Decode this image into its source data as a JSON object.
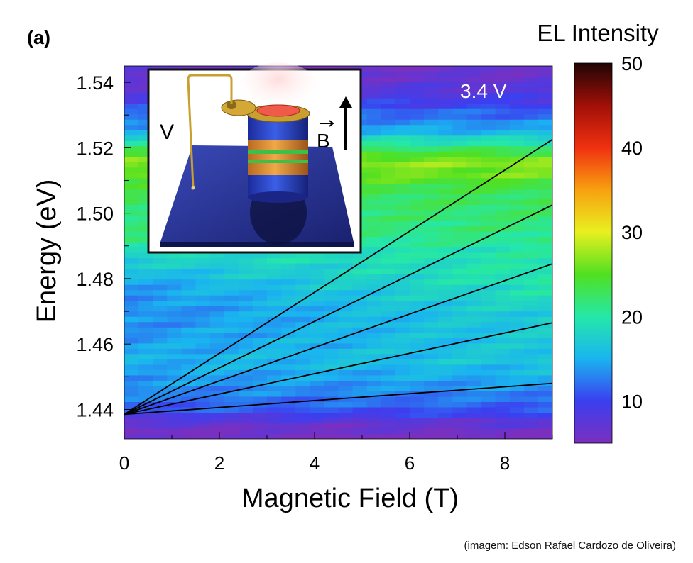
{
  "panel_label": "(a)",
  "credit": "(imagem: Edson Rafael Cardozo de Oliveira)",
  "chart_data": {
    "type": "heatmap",
    "title": "",
    "annotation": "3.4 V",
    "xlabel": "Magnetic Field (T)",
    "ylabel": "Energy (eV)",
    "xlim": [
      0,
      9
    ],
    "ylim": [
      1.431,
      1.545
    ],
    "x_ticks": [
      0,
      2,
      4,
      6,
      8
    ],
    "x_tick_labels": [
      "0",
      "2",
      "4",
      "6",
      "8"
    ],
    "y_ticks": [
      1.44,
      1.46,
      1.48,
      1.5,
      1.52,
      1.54
    ],
    "y_tick_labels": [
      "1.44",
      "1.46",
      "1.48",
      "1.50",
      "1.52",
      "1.54"
    ],
    "colorbar": {
      "label": "EL Intensity",
      "range": [
        5,
        50
      ],
      "ticks": [
        10,
        20,
        30,
        40,
        50
      ],
      "tick_labels": [
        "10",
        "20",
        "30",
        "40",
        "50"
      ],
      "colors": [
        "#7b2fbf",
        "#3b3ff0",
        "#1ab4f0",
        "#25e8a8",
        "#50e020",
        "#e8f020",
        "#f8a010",
        "#f03010",
        "#a01008",
        "#200404"
      ]
    },
    "intensity_profile": [
      {
        "energy": 1.431,
        "intensity": 5
      },
      {
        "energy": 1.434,
        "intensity": 6
      },
      {
        "energy": 1.437,
        "intensity": 8
      },
      {
        "energy": 1.44,
        "intensity": 11
      },
      {
        "energy": 1.445,
        "intensity": 13
      },
      {
        "energy": 1.45,
        "intensity": 14
      },
      {
        "energy": 1.455,
        "intensity": 15
      },
      {
        "energy": 1.46,
        "intensity": 14
      },
      {
        "energy": 1.47,
        "intensity": 13
      },
      {
        "energy": 1.478,
        "intensity": 14
      },
      {
        "energy": 1.485,
        "intensity": 17
      },
      {
        "energy": 1.492,
        "intensity": 21
      },
      {
        "energy": 1.5,
        "intensity": 22
      },
      {
        "energy": 1.507,
        "intensity": 23
      },
      {
        "energy": 1.512,
        "intensity": 26
      },
      {
        "energy": 1.516,
        "intensity": 27
      },
      {
        "energy": 1.52,
        "intensity": 22
      },
      {
        "energy": 1.525,
        "intensity": 15
      },
      {
        "energy": 1.53,
        "intensity": 12
      },
      {
        "energy": 1.535,
        "intensity": 9
      },
      {
        "energy": 1.54,
        "intensity": 7
      },
      {
        "energy": 1.545,
        "intensity": 6
      }
    ],
    "field_brightening": 0.6,
    "series": [
      {
        "x": [
          0,
          9
        ],
        "y": [
          1.4385,
          1.5225
        ]
      },
      {
        "x": [
          0,
          9
        ],
        "y": [
          1.4385,
          1.5025
        ]
      },
      {
        "x": [
          0,
          9
        ],
        "y": [
          1.4385,
          1.4845
        ]
      },
      {
        "x": [
          0,
          9
        ],
        "y": [
          1.4385,
          1.4665
        ]
      },
      {
        "x": [
          0,
          9
        ],
        "y": [
          1.4385,
          1.448
        ]
      }
    ],
    "inset": {
      "voltage_label": "V",
      "field_label": "B"
    }
  }
}
